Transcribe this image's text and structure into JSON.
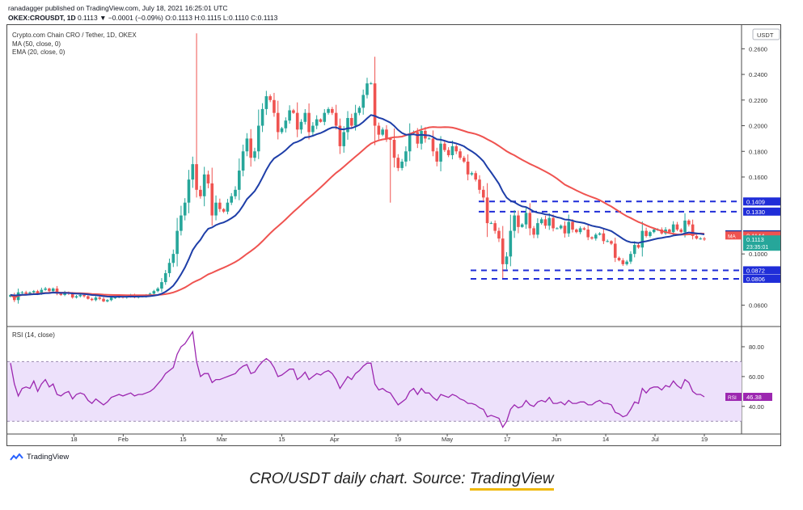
{
  "header": {
    "published": "ranadagger published on TradingView.com, July 18, 2021 16:25:01 UTC",
    "symbol": "OKEX:CROUSDT, 1D",
    "quote": "0.1113 ▼ −0.0001 (−0.09%) O:0.1113 H:0.1115 L:0.1110 C:0.1113"
  },
  "brand": "TradingView",
  "caption": {
    "text": "CRO/USDT daily chart. Source: ",
    "source": "TradingView"
  },
  "colors": {
    "up": "#26a69a",
    "down": "#ef5350",
    "ema": "#1e3ea8",
    "ma": "#ef5350",
    "rsi": "#9c27b0",
    "rsi_band": "#ede1fb",
    "level": "#1f2dd8",
    "last": "#26a69a"
  },
  "chart_data": [
    {
      "type": "candlestick",
      "title": "Crypto.com Chain CRO / Tether, 1D, OKEX",
      "indicator_labels": [
        "MA (50, close, 0)",
        "EMA (20, close, 0)"
      ],
      "currency": "USDT",
      "x_ticks": [
        "18",
        "Feb",
        "15",
        "Mar",
        "15",
        "Apr",
        "19",
        "May",
        "17",
        "Jun",
        "14",
        "Jul",
        "19"
      ],
      "y_ticks": [
        "0.2600",
        "0.2400",
        "0.2200",
        "0.2000",
        "0.1800",
        "0.1600",
        "0.1000",
        "0.0600"
      ],
      "ylim": [
        0.044,
        0.2785
      ],
      "price_badges": [
        {
          "label": "",
          "value": "0.1409",
          "color": "#1f2dd8"
        },
        {
          "label": "",
          "value": "0.1330",
          "color": "#1f2dd8"
        },
        {
          "label": "EMA",
          "value": "0.1153",
          "color": "#1e3ea8"
        },
        {
          "label": "MA",
          "value": "0.1144",
          "color": "#ef5350"
        },
        {
          "label": "",
          "value": "0.1113",
          "sub": "23:35:01",
          "color": "#26a69a"
        },
        {
          "label": "",
          "value": "0.0872",
          "color": "#1f2dd8"
        },
        {
          "label": "",
          "value": "0.0806",
          "color": "#1f2dd8"
        }
      ],
      "levels": [
        0.1409,
        0.133,
        0.0872,
        0.0806
      ],
      "closes": [
        0.068,
        0.064,
        0.07,
        0.07,
        0.069,
        0.07,
        0.071,
        0.069,
        0.072,
        0.073,
        0.071,
        0.073,
        0.069,
        0.068,
        0.07,
        0.069,
        0.066,
        0.067,
        0.068,
        0.067,
        0.065,
        0.064,
        0.066,
        0.065,
        0.063,
        0.064,
        0.066,
        0.066,
        0.067,
        0.066,
        0.067,
        0.068,
        0.066,
        0.067,
        0.067,
        0.068,
        0.069,
        0.071,
        0.073,
        0.078,
        0.085,
        0.093,
        0.1,
        0.118,
        0.13,
        0.14,
        0.158,
        0.17,
        0.15,
        0.145,
        0.162,
        0.155,
        0.13,
        0.14,
        0.135,
        0.133,
        0.14,
        0.145,
        0.15,
        0.165,
        0.18,
        0.19,
        0.175,
        0.18,
        0.2,
        0.213,
        0.223,
        0.22,
        0.21,
        0.195,
        0.198,
        0.204,
        0.212,
        0.21,
        0.197,
        0.203,
        0.21,
        0.195,
        0.2,
        0.205,
        0.203,
        0.21,
        0.213,
        0.21,
        0.2,
        0.184,
        0.195,
        0.206,
        0.2,
        0.21,
        0.214,
        0.224,
        0.233,
        0.233,
        0.2,
        0.193,
        0.197,
        0.19,
        0.189,
        0.175,
        0.167,
        0.172,
        0.18,
        0.194,
        0.195,
        0.186,
        0.196,
        0.19,
        0.19,
        0.18,
        0.172,
        0.186,
        0.181,
        0.177,
        0.184,
        0.18,
        0.175,
        0.172,
        0.162,
        0.163,
        0.158,
        0.15,
        0.144,
        0.124,
        0.124,
        0.118,
        0.112,
        0.092,
        0.098,
        0.118,
        0.13,
        0.121,
        0.123,
        0.132,
        0.12,
        0.115,
        0.124,
        0.127,
        0.122,
        0.128,
        0.12,
        0.12,
        0.122,
        0.116,
        0.125,
        0.119,
        0.117,
        0.12,
        0.119,
        0.113,
        0.112,
        0.115,
        0.116,
        0.11,
        0.11,
        0.108,
        0.097,
        0.095,
        0.092,
        0.094,
        0.1,
        0.107,
        0.105,
        0.118,
        0.114,
        0.117,
        0.119,
        0.119,
        0.116,
        0.119,
        0.117,
        0.123,
        0.119,
        0.117,
        0.126,
        0.123,
        0.114,
        0.112,
        0.112,
        0.1113
      ]
    },
    {
      "type": "line",
      "title": "RSI (14, close)",
      "y_ticks": [
        "80.00",
        "60.00",
        "40.00"
      ],
      "ylim": [
        22,
        93
      ],
      "band": [
        30,
        70
      ],
      "last_label": "RSI",
      "last_value": "46.38",
      "values": [
        69,
        55,
        47,
        52,
        53,
        52,
        57,
        50,
        55,
        58,
        53,
        55,
        48,
        47,
        49,
        50,
        45,
        48,
        49,
        48,
        44,
        42,
        45,
        43,
        41,
        43,
        46,
        47,
        48,
        47,
        48,
        49,
        47,
        48,
        48,
        49,
        50,
        52,
        55,
        58,
        62,
        64,
        66,
        75,
        80,
        82,
        86,
        90,
        70,
        60,
        62,
        62,
        56,
        58,
        58,
        59,
        60,
        61,
        62,
        65,
        67,
        68,
        62,
        63,
        67,
        70,
        72,
        70,
        66,
        60,
        61,
        63,
        65,
        65,
        58,
        60,
        63,
        58,
        60,
        62,
        61,
        63,
        64,
        62,
        58,
        52,
        56,
        60,
        58,
        62,
        64,
        67,
        69,
        69,
        55,
        51,
        52,
        50,
        49,
        45,
        41,
        43,
        45,
        50,
        52,
        48,
        52,
        49,
        49,
        46,
        44,
        48,
        47,
        46,
        48,
        47,
        45,
        44,
        42,
        42,
        41,
        39,
        38,
        33,
        34,
        33,
        32,
        26,
        30,
        38,
        41,
        39,
        40,
        44,
        41,
        40,
        43,
        44,
        43,
        46,
        42,
        42,
        43,
        41,
        44,
        42,
        42,
        43,
        43,
        41,
        41,
        43,
        44,
        42,
        42,
        41,
        36,
        35,
        33,
        34,
        38,
        43,
        42,
        52,
        49,
        52,
        53,
        53,
        51,
        54,
        53,
        57,
        54,
        52,
        58,
        56,
        50,
        48,
        48,
        46.38
      ]
    }
  ]
}
